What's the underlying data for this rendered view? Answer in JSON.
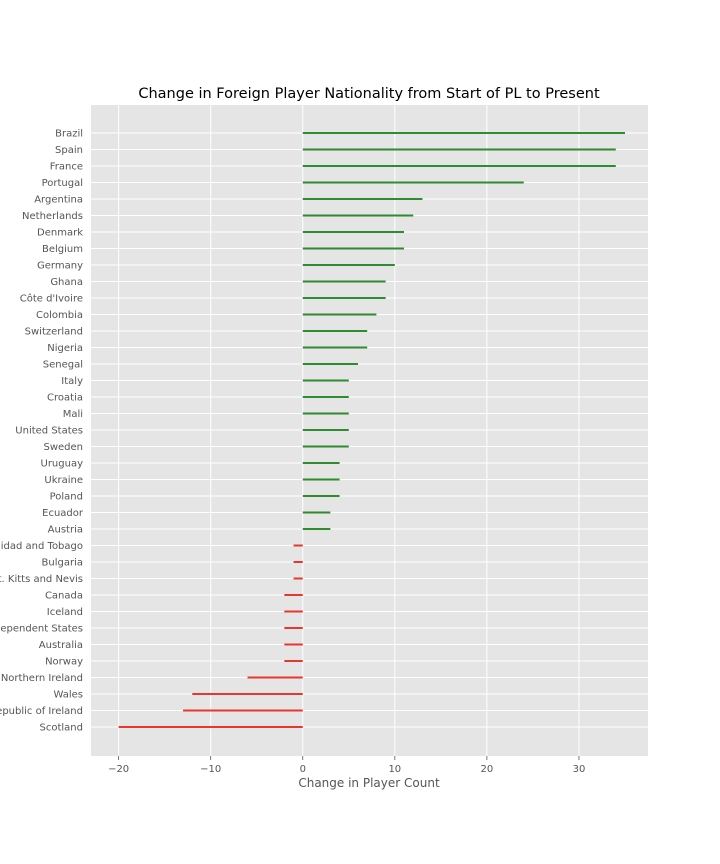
{
  "chart_data": {
    "type": "bar",
    "orientation": "horizontal",
    "title": "Change in Foreign Player Nationality from Start of PL to Present",
    "xlabel": "Change in Player Count",
    "ylabel": "",
    "xlim": [
      -23,
      37.5
    ],
    "xticks": [
      -20,
      -10,
      0,
      10,
      20,
      30
    ],
    "xtick_labels": [
      "−20",
      "−10",
      "0",
      "10",
      "20",
      "30"
    ],
    "grid": true,
    "colors": {
      "positive": "#2e8b2e",
      "negative": "#e8372f",
      "background": "#e5e5e5",
      "grid": "#ffffff"
    },
    "categories": [
      "Brazil",
      "Spain",
      "France",
      "Portugal",
      "Argentina",
      "Netherlands",
      "Denmark",
      "Belgium",
      "Germany",
      "Ghana",
      "Côte d'Ivoire",
      "Colombia",
      "Switzerland",
      "Nigeria",
      "Senegal",
      "Italy",
      "Croatia",
      "Mali",
      "United States",
      "Sweden",
      "Uruguay",
      "Ukraine",
      "Poland",
      "Ecuador",
      "Austria",
      "Trinidad and Tobago",
      "Bulgaria",
      "St. Kitts and Nevis",
      "Canada",
      "Iceland",
      "Commonwealth of Independent States",
      "Australia",
      "Norway",
      "Northern Ireland",
      "Wales",
      "Republic of Ireland",
      "Scotland"
    ],
    "values": [
      35,
      34,
      34,
      24,
      13,
      12,
      11,
      11,
      10,
      9,
      9,
      8,
      7,
      7,
      6,
      5,
      5,
      5,
      5,
      5,
      4,
      4,
      4,
      3,
      3,
      -1,
      -1,
      -1,
      -2,
      -2,
      -2,
      -2,
      -2,
      -6,
      -12,
      -13,
      -20
    ]
  }
}
